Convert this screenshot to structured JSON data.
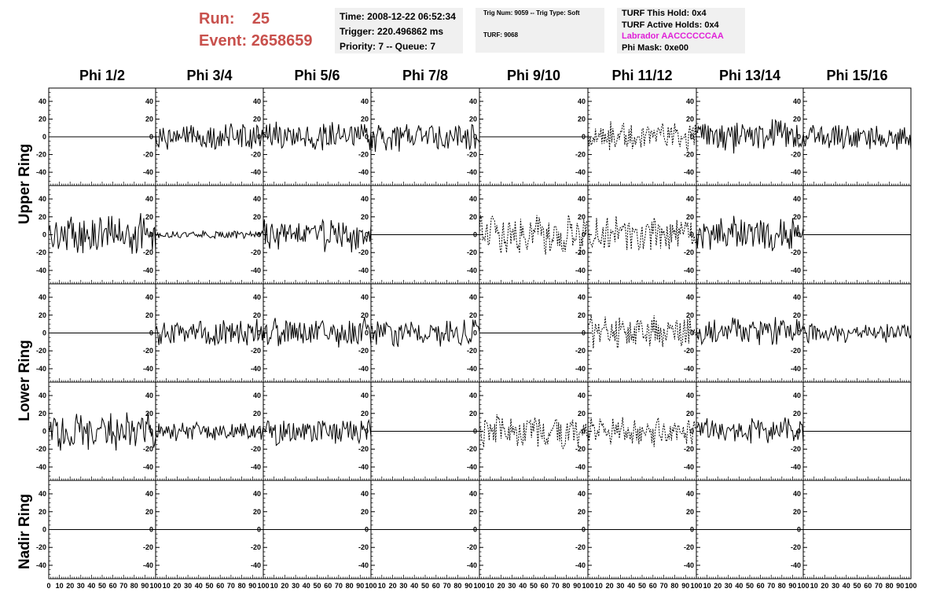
{
  "header": {
    "run_label": "Run:",
    "run_value": "25",
    "event_label": "Event:",
    "event_value": "2658659"
  },
  "info_time": {
    "time": "Time: 2008-12-22 06:52:34",
    "trigger": "Trigger: 220.496862 ms",
    "priority": "Priority: 7 -- Queue: 7"
  },
  "info_trig": {
    "trig": "Trig Num: 9059 -- Trig Type: Soft",
    "turf": "TURF: 9068"
  },
  "info_turf": {
    "this_hold": "TURF This Hold: 0x4",
    "active_holds": "TURF Active Holds: 0x4",
    "labrador": "Labrador AACCCCCCAA",
    "phi_mask": "Phi Mask: 0xe00"
  },
  "colors": {
    "header_red": "#c8504c",
    "labrador_magenta": "#e020d8",
    "info_bg": "#f0f0f0"
  },
  "chart_data": {
    "type": "line",
    "columns": [
      "Phi 1/2",
      "Phi 3/4",
      "Phi 5/6",
      "Phi 7/8",
      "Phi 9/10",
      "Phi 11/12",
      "Phi 13/14",
      "Phi 15/16"
    ],
    "ring_labels": [
      "Upper Ring",
      "Lower Ring",
      "Nadir Ring"
    ],
    "xlim": [
      0,
      100
    ],
    "ylim": [
      -55,
      55
    ],
    "y_ticks": [
      -40,
      -20,
      0,
      20,
      40
    ],
    "x_tick_labels": [
      "0",
      "10",
      "20",
      "30",
      "40",
      "50",
      "60",
      "70",
      "80",
      "90",
      "100"
    ],
    "grid": false,
    "rows": [
      {
        "panels": [
          {
            "style": "flat",
            "amp": 0
          },
          {
            "style": "solid",
            "amp": 14
          },
          {
            "style": "solid",
            "amp": 16
          },
          {
            "style": "solid",
            "amp": 15
          },
          {
            "style": "flat",
            "amp": 0
          },
          {
            "style": "dashed",
            "amp": 16
          },
          {
            "style": "solid",
            "amp": 17
          },
          {
            "style": "solid",
            "amp": 14
          }
        ]
      },
      {
        "panels": [
          {
            "style": "solid",
            "amp": 22
          },
          {
            "style": "solid",
            "amp": 4
          },
          {
            "style": "solid",
            "amp": 18
          },
          {
            "style": "flat",
            "amp": 0
          },
          {
            "style": "dashed",
            "amp": 22
          },
          {
            "style": "dashed",
            "amp": 18
          },
          {
            "style": "solid",
            "amp": 18
          },
          {
            "style": "flat",
            "amp": 0
          }
        ]
      },
      {
        "panels": [
          {
            "style": "flat",
            "amp": 0
          },
          {
            "style": "solid",
            "amp": 14
          },
          {
            "style": "solid",
            "amp": 16
          },
          {
            "style": "solid",
            "amp": 14
          },
          {
            "style": "flat",
            "amp": 0
          },
          {
            "style": "dashed",
            "amp": 17
          },
          {
            "style": "solid",
            "amp": 16
          },
          {
            "style": "solid",
            "amp": 10
          }
        ]
      },
      {
        "panels": [
          {
            "style": "solid",
            "amp": 20
          },
          {
            "style": "solid",
            "amp": 10
          },
          {
            "style": "solid",
            "amp": 15
          },
          {
            "style": "flat",
            "amp": 0
          },
          {
            "style": "dashed",
            "amp": 18
          },
          {
            "style": "dashed",
            "amp": 16
          },
          {
            "style": "solid",
            "amp": 14
          },
          {
            "style": "flat",
            "amp": 0
          }
        ]
      },
      {
        "panels": [
          {
            "style": "flat",
            "amp": 0
          },
          {
            "style": "flat",
            "amp": 0
          },
          {
            "style": "flat",
            "amp": 0
          },
          {
            "style": "flat",
            "amp": 0
          },
          {
            "style": "flat",
            "amp": 0
          },
          {
            "style": "flat",
            "amp": 0
          },
          {
            "style": "flat",
            "amp": 0
          },
          {
            "style": "flat",
            "amp": 0
          }
        ]
      }
    ]
  }
}
